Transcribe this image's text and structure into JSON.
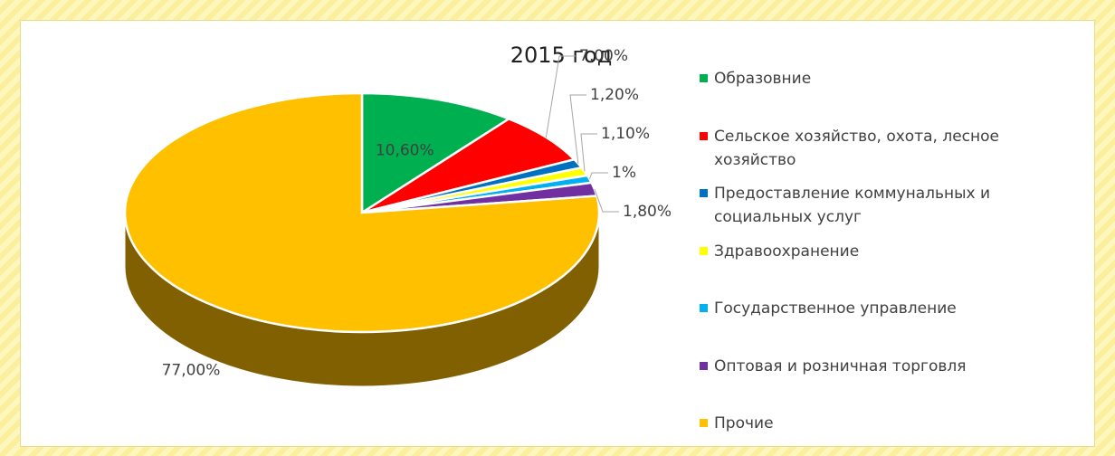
{
  "chart_data": {
    "type": "pie",
    "title": "2015 год",
    "categories": [
      "Образовние",
      "Сельское хозяйство, охота, лесное хозяйство",
      "Предоставление коммунальных и социальных услуг",
      "Здравоохранение",
      "Государственное управление",
      "Оптовая и розничная торговля",
      "Прочие"
    ],
    "values": [
      10.6,
      7.0,
      1.2,
      1.1,
      1,
      1.8,
      77.0
    ],
    "value_labels": [
      "10,60%",
      "7,00%",
      "1,20%",
      "1,10%",
      "1%",
      "1,80%",
      "77,00%"
    ],
    "colors": [
      "#00b050",
      "#ff0000",
      "#0070c0",
      "#ffff00",
      "#00b0f0",
      "#7030a0",
      "#ffc000"
    ],
    "legend": "right"
  }
}
